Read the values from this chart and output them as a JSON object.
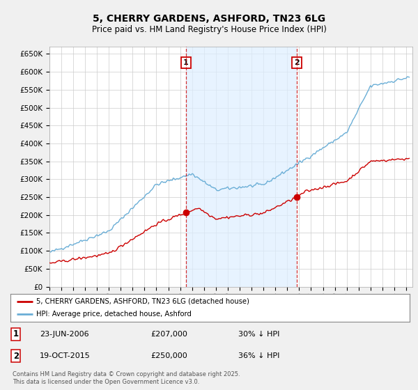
{
  "title": "5, CHERRY GARDENS, ASHFORD, TN23 6LG",
  "subtitle": "Price paid vs. HM Land Registry's House Price Index (HPI)",
  "ylim": [
    0,
    670000
  ],
  "yticks": [
    0,
    50000,
    100000,
    150000,
    200000,
    250000,
    300000,
    350000,
    400000,
    450000,
    500000,
    550000,
    600000,
    650000
  ],
  "xlim_start": 1995.0,
  "xlim_end": 2025.5,
  "hpi_color": "#6aaed6",
  "price_color": "#cc0000",
  "vline1_x": 2006.48,
  "vline2_x": 2015.8,
  "vline_color": "#cc0000",
  "shade_color": "#ddeeff",
  "marker1_x": 2006.48,
  "marker1_y": 207000,
  "marker2_x": 2015.8,
  "marker2_y": 250000,
  "legend_label_price": "5, CHERRY GARDENS, ASHFORD, TN23 6LG (detached house)",
  "legend_label_hpi": "HPI: Average price, detached house, Ashford",
  "footer": "Contains HM Land Registry data © Crown copyright and database right 2025.\nThis data is licensed under the Open Government Licence v3.0.",
  "bg_color": "#f0f0f0",
  "plot_bg_color": "#ffffff",
  "grid_color": "#cccccc"
}
